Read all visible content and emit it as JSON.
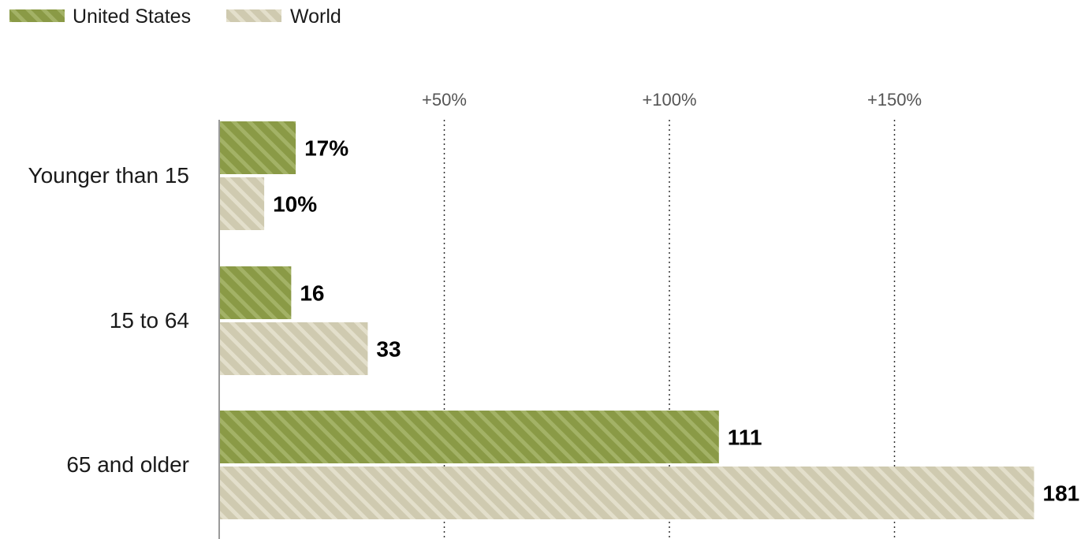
{
  "chart_data": {
    "type": "bar",
    "orientation": "horizontal",
    "categories": [
      "Younger than 15",
      "15 to 64",
      "65 and older"
    ],
    "series": [
      {
        "name": "United States",
        "values": [
          17,
          16,
          111
        ],
        "labels": [
          "17%",
          "16",
          "111"
        ],
        "color": "#8a9a46",
        "stripe_color": "#a3b266"
      },
      {
        "name": "World",
        "values": [
          10,
          33,
          181
        ],
        "labels": [
          "10%",
          "33",
          "181"
        ],
        "color": "#cfcab0",
        "stripe_color": "#e3dfcb"
      }
    ],
    "x_ticks": [
      {
        "value": 50,
        "label": "+50%"
      },
      {
        "value": 100,
        "label": "+100%"
      },
      {
        "value": 150,
        "label": "+150%"
      }
    ],
    "xlim": [
      0,
      181
    ],
    "grid": true,
    "legend_position": "top-left"
  }
}
